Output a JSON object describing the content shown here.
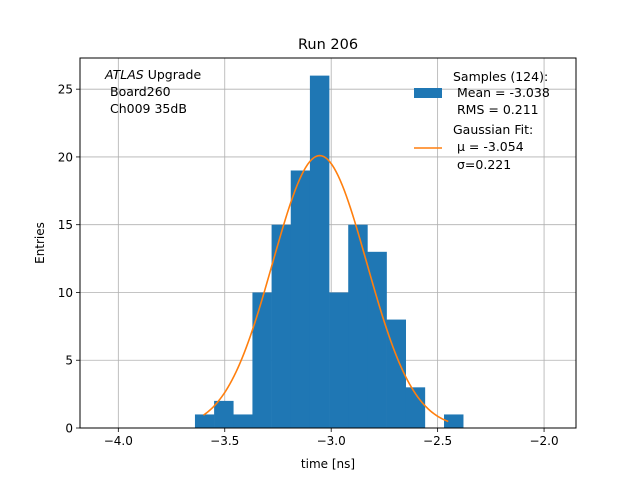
{
  "chart_data": {
    "type": "bar",
    "title": "Run 206",
    "xlabel": "time [ns]",
    "ylabel": "Entries",
    "xlim": [
      -4.18,
      -1.85
    ],
    "ylim": [
      0,
      27.3
    ],
    "xticks": [
      -4.0,
      -3.5,
      -3.0,
      -2.5,
      -2.0
    ],
    "xtick_labels": [
      "−4.0",
      "−3.5",
      "−3.0",
      "−2.5",
      "−2.0"
    ],
    "yticks": [
      0,
      5,
      10,
      15,
      20,
      25
    ],
    "ytick_labels": [
      "0",
      "5",
      "10",
      "15",
      "20",
      "25"
    ],
    "grid": true,
    "annotation": {
      "atlas": "ATLAS",
      "upgrade": " Upgrade",
      "board": "Board260",
      "channel": "Ch009 35dB"
    },
    "histogram": {
      "name": "Samples (124):",
      "mean_label": "Mean = -3.038",
      "rms_label": "RMS = 0.211",
      "color": "#1f77b4",
      "bin_edges": [
        -3.64,
        -3.55,
        -3.46,
        -3.37,
        -3.28,
        -3.19,
        -3.1,
        -3.01,
        -2.92,
        -2.83,
        -2.74,
        -2.65,
        -2.56,
        -2.47,
        -2.38
      ],
      "counts": [
        1,
        2,
        1,
        10,
        15,
        19,
        26,
        10,
        15,
        13,
        8,
        3,
        0,
        1
      ]
    },
    "fit": {
      "name": "Gaussian Fit:",
      "mu_label": "μ = -3.054",
      "sigma_label": "σ=0.221",
      "color": "#ff7f0e",
      "mu": -3.054,
      "sigma": 0.221,
      "amplitude": 20.1,
      "x_range": [
        -3.6,
        -2.45
      ]
    },
    "legend_position": "top-right"
  }
}
